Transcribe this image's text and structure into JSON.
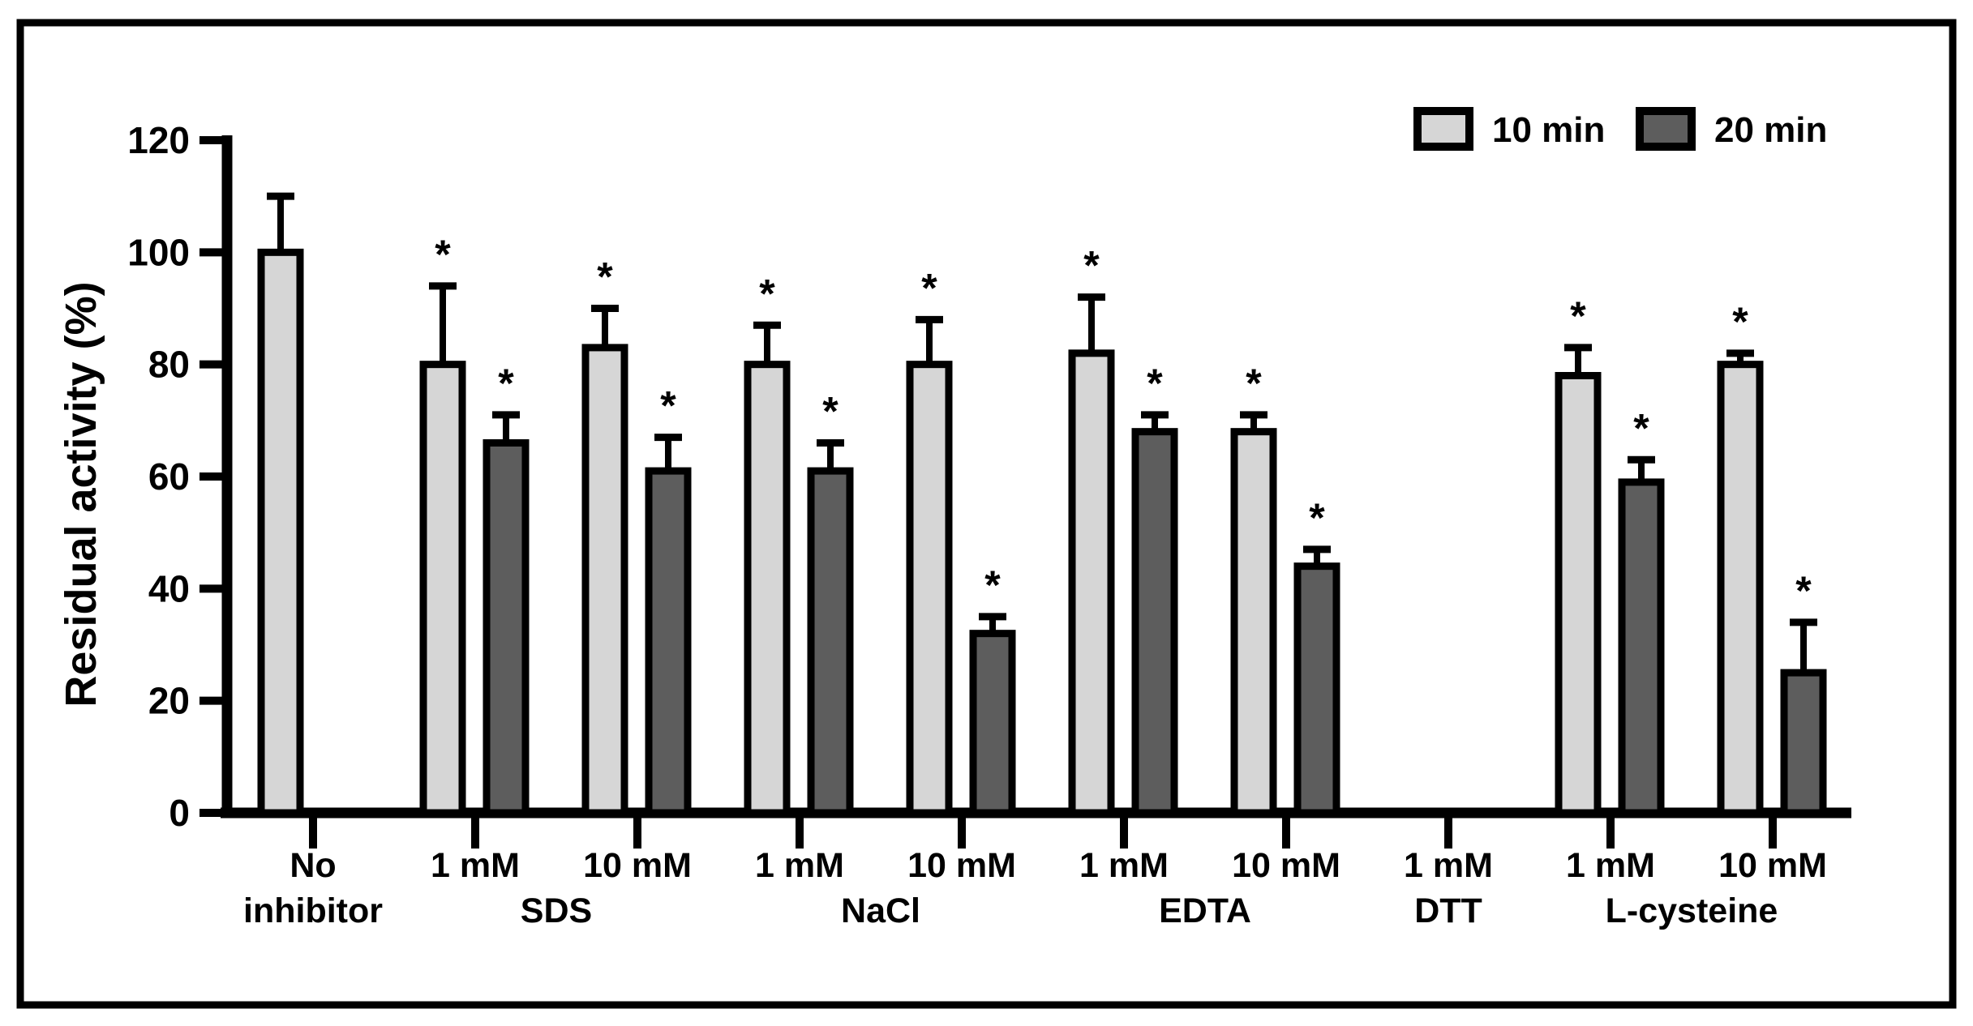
{
  "figure": {
    "background": "#ffffff",
    "border_color": "#000000",
    "legend": {
      "position": "top-right",
      "items": [
        {
          "label": "10 min",
          "swatch_color": "#d6d6d6"
        },
        {
          "label": "20 min",
          "swatch_color": "#5d5d5d"
        }
      ]
    }
  },
  "chart_data": {
    "type": "bar",
    "title": "",
    "xlabel": "",
    "ylabel": "Residual activity (%)",
    "ylim": [
      0,
      120
    ],
    "yticks": [
      0,
      20,
      40,
      60,
      80,
      100,
      120
    ],
    "grid": false,
    "legend_position": "top-right",
    "significance_symbol": "*",
    "bar_outline_color": "#000000",
    "error_bar_color": "#000000",
    "categories": [
      "No inhibitor",
      "1 mM SDS",
      "10 mM SDS",
      "1 mM NaCl",
      "10 mM NaCl",
      "1 mM EDTA",
      "10 mM EDTA",
      "1 mM DTT",
      "1 mM L-cysteine",
      "10 mM L-cysteine"
    ],
    "x_tick_labels": [
      "No",
      "1 mM",
      "10 mM",
      "1 mM",
      "10 mM",
      "1 mM",
      "10 mM",
      "1 mM",
      "1 mM",
      "10 mM"
    ],
    "group_labels": [
      {
        "text": "inhibitor",
        "span": [
          0,
          0
        ]
      },
      {
        "text": "SDS",
        "span": [
          1,
          2
        ]
      },
      {
        "text": "NaCl",
        "span": [
          3,
          4
        ]
      },
      {
        "text": "EDTA",
        "span": [
          5,
          6
        ]
      },
      {
        "text": "DTT",
        "span": [
          7,
          7
        ]
      },
      {
        "text": "L-cysteine",
        "span": [
          8,
          9
        ]
      }
    ],
    "series": [
      {
        "name": "10 min",
        "color": "#d6d6d6",
        "values": [
          100,
          80,
          83,
          80,
          80,
          82,
          68,
          null,
          78,
          80
        ],
        "errors": [
          10,
          14,
          7,
          7,
          8,
          10,
          3,
          null,
          5,
          2
        ],
        "significant": [
          false,
          true,
          true,
          true,
          true,
          true,
          true,
          false,
          true,
          true
        ]
      },
      {
        "name": "20 min",
        "color": "#5d5d5d",
        "values": [
          null,
          66,
          61,
          61,
          32,
          68,
          44,
          null,
          59,
          25
        ],
        "errors": [
          null,
          5,
          6,
          5,
          3,
          3,
          3,
          null,
          4,
          9
        ],
        "significant": [
          false,
          true,
          true,
          true,
          true,
          true,
          true,
          false,
          true,
          true
        ]
      }
    ]
  }
}
